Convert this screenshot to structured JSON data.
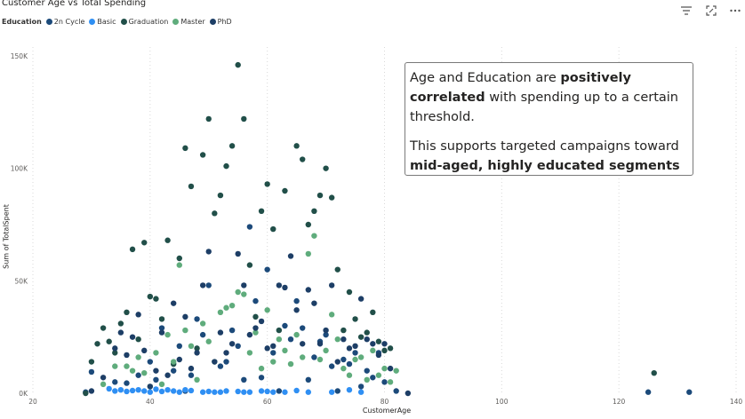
{
  "header": {
    "title": "Customer Age vs Total Spending",
    "toolbar": {
      "filter_icon": "filter-icon",
      "focus_icon": "focus-mode-icon",
      "more_icon": "more-options-icon"
    }
  },
  "legend": {
    "title": "Education",
    "items": [
      {
        "label": "2n Cycle",
        "color": "#1c4a7a"
      },
      {
        "label": "Basic",
        "color": "#2f8ff3"
      },
      {
        "label": "Graduation",
        "color": "#214f49"
      },
      {
        "label": "Master",
        "color": "#5fac7c"
      },
      {
        "label": "PhD",
        "color": "#1d3e66"
      }
    ]
  },
  "annotation": {
    "line1_pre": "Age and Education are ",
    "line1_bold": "positively correlated",
    "line1_post": " with spending up to a certain threshold.",
    "line2_pre": "This supports targeted campaigns toward ",
    "line2_bold": "mid-aged, highly educated segments"
  },
  "chart_data": {
    "type": "scatter",
    "title": "Customer Age vs Total Spending",
    "xlabel": "CustomerAge",
    "ylabel": "Sum of TotalSpent",
    "xlim": [
      20,
      140
    ],
    "ylim": [
      0,
      150000
    ],
    "x_ticks": [
      20,
      40,
      60,
      80,
      100,
      120,
      140
    ],
    "y_ticks": [
      0,
      50000,
      100000,
      150000
    ],
    "y_tick_labels": [
      "0K",
      "50K",
      "100K",
      "150K"
    ],
    "grid": "vertical dotted",
    "legend_position": "top-left",
    "series": [
      {
        "name": "2n Cycle",
        "color": "#1c4a7a",
        "points": [
          [
            29,
            500
          ],
          [
            30,
            9500
          ],
          [
            34,
            5000
          ],
          [
            36,
            4500
          ],
          [
            38,
            8000
          ],
          [
            40,
            14000
          ],
          [
            41,
            6000
          ],
          [
            42,
            29000
          ],
          [
            44,
            10000
          ],
          [
            45,
            21000
          ],
          [
            46,
            1000
          ],
          [
            47,
            8000
          ],
          [
            48,
            33000
          ],
          [
            49,
            26000
          ],
          [
            50,
            48000
          ],
          [
            52,
            12000
          ],
          [
            53,
            14000
          ],
          [
            54,
            28000
          ],
          [
            55,
            21000
          ],
          [
            56,
            6000
          ],
          [
            57,
            74000
          ],
          [
            58,
            41000
          ],
          [
            59,
            7000
          ],
          [
            60,
            55000
          ],
          [
            61,
            18000
          ],
          [
            62,
            1000
          ],
          [
            63,
            30000
          ],
          [
            64,
            24000
          ],
          [
            65,
            41000
          ],
          [
            66,
            29000
          ],
          [
            67,
            6000
          ],
          [
            68,
            16000
          ],
          [
            69,
            23000
          ],
          [
            70,
            26000
          ],
          [
            71,
            12000
          ],
          [
            72,
            1000
          ],
          [
            73,
            15000
          ],
          [
            74,
            13000
          ],
          [
            75,
            18000
          ],
          [
            76,
            3000
          ],
          [
            77,
            10000
          ],
          [
            78,
            7000
          ],
          [
            79,
            18000
          ],
          [
            80,
            5000
          ],
          [
            82,
            1000
          ],
          [
            125,
            500
          ],
          [
            132,
            500
          ]
        ]
      },
      {
        "name": "Basic",
        "color": "#2f8ff3",
        "points": [
          [
            33,
            2000
          ],
          [
            34,
            1000
          ],
          [
            35,
            1500
          ],
          [
            36,
            800
          ],
          [
            37,
            1200
          ],
          [
            38,
            1500
          ],
          [
            39,
            1000
          ],
          [
            40,
            500
          ],
          [
            41,
            1800
          ],
          [
            42,
            800
          ],
          [
            43,
            1500
          ],
          [
            44,
            1000
          ],
          [
            45,
            500
          ],
          [
            46,
            1500
          ],
          [
            47,
            1200
          ],
          [
            49,
            500
          ],
          [
            50,
            800
          ],
          [
            51,
            500
          ],
          [
            52,
            500
          ],
          [
            53,
            1000
          ],
          [
            55,
            800
          ],
          [
            56,
            500
          ],
          [
            57,
            500
          ],
          [
            59,
            1000
          ],
          [
            60,
            800
          ],
          [
            61,
            500
          ],
          [
            63,
            500
          ],
          [
            65,
            1200
          ],
          [
            67,
            500
          ],
          [
            71,
            500
          ],
          [
            74,
            1500
          ],
          [
            76,
            500
          ]
        ]
      },
      {
        "name": "Graduation",
        "color": "#214f49",
        "points": [
          [
            29,
            0
          ],
          [
            30,
            14000
          ],
          [
            31,
            22000
          ],
          [
            32,
            29000
          ],
          [
            33,
            23000
          ],
          [
            34,
            18000
          ],
          [
            35,
            31000
          ],
          [
            36,
            36000
          ],
          [
            37,
            64000
          ],
          [
            38,
            24000
          ],
          [
            39,
            67000
          ],
          [
            40,
            43000
          ],
          [
            41,
            42000
          ],
          [
            42,
            33000
          ],
          [
            43,
            68000
          ],
          [
            44,
            13000
          ],
          [
            45,
            60000
          ],
          [
            46,
            109000
          ],
          [
            47,
            92000
          ],
          [
            48,
            20000
          ],
          [
            49,
            106000
          ],
          [
            50,
            122000
          ],
          [
            51,
            80000
          ],
          [
            52,
            88000
          ],
          [
            53,
            101000
          ],
          [
            54,
            110000
          ],
          [
            55,
            146000
          ],
          [
            56,
            122000
          ],
          [
            57,
            57000
          ],
          [
            58,
            34000
          ],
          [
            59,
            81000
          ],
          [
            60,
            93000
          ],
          [
            61,
            73000
          ],
          [
            62,
            28000
          ],
          [
            63,
            90000
          ],
          [
            65,
            110000
          ],
          [
            66,
            104000
          ],
          [
            67,
            75000
          ],
          [
            68,
            81000
          ],
          [
            69,
            88000
          ],
          [
            70,
            100000
          ],
          [
            71,
            87000
          ],
          [
            72,
            55000
          ],
          [
            73,
            28000
          ],
          [
            74,
            45000
          ],
          [
            75,
            33000
          ],
          [
            76,
            25000
          ],
          [
            77,
            27000
          ],
          [
            78,
            36000
          ],
          [
            79,
            23000
          ],
          [
            80,
            19000
          ],
          [
            81,
            20000
          ],
          [
            126,
            9000
          ]
        ]
      },
      {
        "name": "Master",
        "color": "#5fac7c",
        "points": [
          [
            32,
            4000
          ],
          [
            34,
            12000
          ],
          [
            36,
            12000
          ],
          [
            37,
            10000
          ],
          [
            38,
            16000
          ],
          [
            39,
            9000
          ],
          [
            40,
            3000
          ],
          [
            41,
            18000
          ],
          [
            42,
            4000
          ],
          [
            43,
            26000
          ],
          [
            44,
            14000
          ],
          [
            45,
            57000
          ],
          [
            46,
            28000
          ],
          [
            47,
            21000
          ],
          [
            48,
            6000
          ],
          [
            49,
            31000
          ],
          [
            50,
            23000
          ],
          [
            51,
            14000
          ],
          [
            52,
            36000
          ],
          [
            53,
            38000
          ],
          [
            54,
            39000
          ],
          [
            55,
            45000
          ],
          [
            56,
            44000
          ],
          [
            57,
            18000
          ],
          [
            58,
            27000
          ],
          [
            59,
            11000
          ],
          [
            60,
            37000
          ],
          [
            61,
            14000
          ],
          [
            62,
            24000
          ],
          [
            63,
            19000
          ],
          [
            64,
            13000
          ],
          [
            65,
            26000
          ],
          [
            66,
            16000
          ],
          [
            67,
            62000
          ],
          [
            68,
            70000
          ],
          [
            69,
            15000
          ],
          [
            70,
            19000
          ],
          [
            71,
            35000
          ],
          [
            72,
            24000
          ],
          [
            73,
            11000
          ],
          [
            74,
            8000
          ],
          [
            75,
            15000
          ],
          [
            76,
            16000
          ],
          [
            77,
            6000
          ],
          [
            78,
            19000
          ],
          [
            79,
            8000
          ],
          [
            80,
            11000
          ],
          [
            81,
            5000
          ],
          [
            82,
            10000
          ]
        ]
      },
      {
        "name": "PhD",
        "color": "#1d3e66",
        "points": [
          [
            30,
            1000
          ],
          [
            32,
            7000
          ],
          [
            34,
            20000
          ],
          [
            35,
            27000
          ],
          [
            36,
            17000
          ],
          [
            37,
            25000
          ],
          [
            38,
            35000
          ],
          [
            39,
            19000
          ],
          [
            40,
            3000
          ],
          [
            41,
            10000
          ],
          [
            42,
            27000
          ],
          [
            43,
            8000
          ],
          [
            44,
            40000
          ],
          [
            45,
            15000
          ],
          [
            46,
            34000
          ],
          [
            47,
            11000
          ],
          [
            48,
            18000
          ],
          [
            49,
            48000
          ],
          [
            50,
            63000
          ],
          [
            51,
            14000
          ],
          [
            52,
            27000
          ],
          [
            53,
            18000
          ],
          [
            54,
            22000
          ],
          [
            55,
            62000
          ],
          [
            56,
            48000
          ],
          [
            57,
            26000
          ],
          [
            58,
            29000
          ],
          [
            59,
            32000
          ],
          [
            60,
            20000
          ],
          [
            61,
            21000
          ],
          [
            62,
            48000
          ],
          [
            63,
            47000
          ],
          [
            64,
            61000
          ],
          [
            65,
            37000
          ],
          [
            66,
            22000
          ],
          [
            67,
            46000
          ],
          [
            68,
            40000
          ],
          [
            69,
            22000
          ],
          [
            70,
            28000
          ],
          [
            71,
            48000
          ],
          [
            72,
            14000
          ],
          [
            73,
            24000
          ],
          [
            74,
            20000
          ],
          [
            75,
            21000
          ],
          [
            76,
            42000
          ],
          [
            77,
            24000
          ],
          [
            78,
            22000
          ],
          [
            79,
            17000
          ],
          [
            80,
            22000
          ],
          [
            81,
            11000
          ],
          [
            84,
            0
          ]
        ]
      }
    ]
  }
}
